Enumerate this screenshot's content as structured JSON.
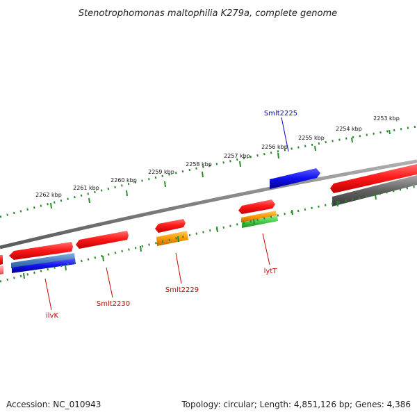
{
  "title": "Stenotrophomonas maltophilia K279a, complete genome",
  "tick_labels": [
    "2253 kbp",
    "2254 kbp",
    "2255 kbp",
    "2256 kbp",
    "2257 kbp",
    "2258 kbp",
    "2259 kbp",
    "2260 kbp",
    "2261 kbp",
    "2262 kbp"
  ],
  "gene_labels": [
    {
      "name": "Smlt2225",
      "color": "#0000cc"
    },
    {
      "name": "lytT",
      "color": "#cc0000"
    },
    {
      "name": "Smlt2229",
      "color": "#cc0000"
    },
    {
      "name": "Smlt2230",
      "color": "#cc0000"
    },
    {
      "name": "ilvK",
      "color": "#cc0000"
    }
  ],
  "colors": {
    "cds_red": "#ff1a1a",
    "cds_blue": "#1a1aee",
    "steel_blue": "#4a7fc0",
    "orange": "#ff9900",
    "green": "#44cc44",
    "dark_gray": "#606060",
    "backbone": "#888888",
    "tick_green": "#2a8a2a"
  },
  "footer": {
    "accession": "Accession: NC_010943",
    "summary": "Topology: circular; Length: 4,851,126 bp; Genes: 4,386"
  }
}
